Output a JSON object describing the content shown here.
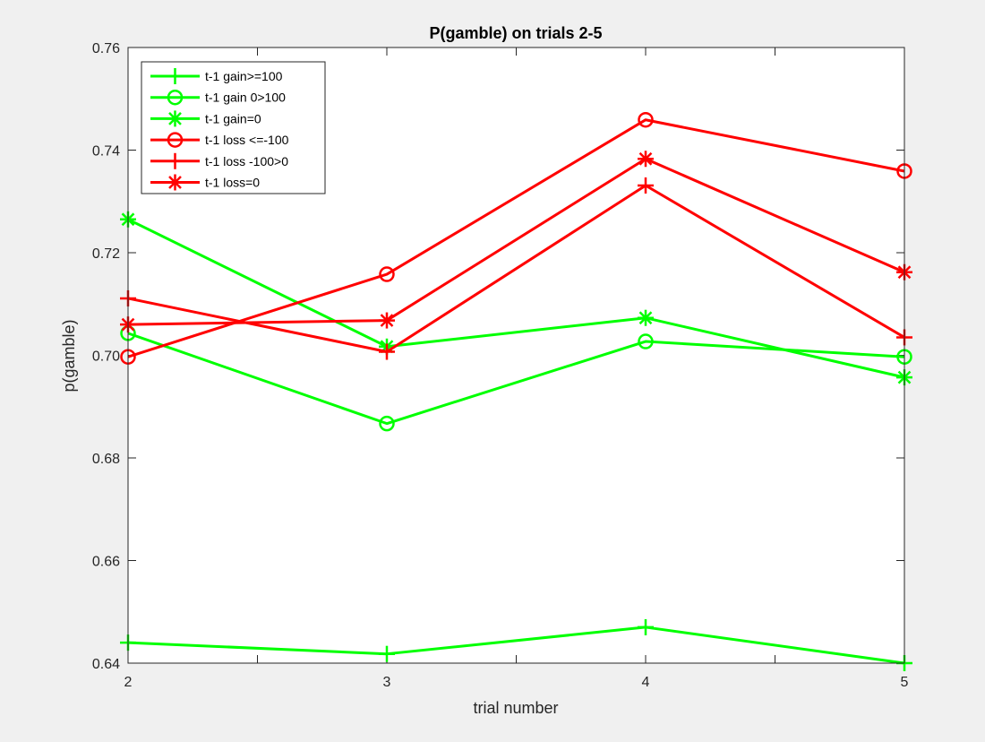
{
  "chart_data": {
    "type": "line",
    "title": "P(gamble) on trials 2-5",
    "xlabel": "trial number",
    "ylabel": "p(gamble)",
    "x": [
      2,
      3,
      4,
      5
    ],
    "xlim": [
      2,
      5
    ],
    "ylim": [
      0.64,
      0.76
    ],
    "xticks": [
      "2",
      "3",
      "4",
      "5"
    ],
    "yticks": [
      "0.64",
      "0.66",
      "0.68",
      "0.70",
      "0.72",
      "0.74",
      "0.76"
    ],
    "grid": false,
    "legend_position": "top-left",
    "series": [
      {
        "name": "t-1 gain>=100",
        "color": "#00ff00",
        "marker": "plus",
        "values": [
          0.644,
          0.6418,
          0.647,
          0.64
        ]
      },
      {
        "name": "t-1 gain 0>100",
        "color": "#00ff00",
        "marker": "circle",
        "values": [
          0.7043,
          0.6867,
          0.7027,
          0.6997
        ]
      },
      {
        "name": "t-1 gain=0",
        "color": "#00ff00",
        "marker": "asterisk",
        "values": [
          0.7265,
          0.7017,
          0.7073,
          0.6957
        ]
      },
      {
        "name": "t-1 loss <=-100",
        "color": "#ff0000",
        "marker": "circle",
        "values": [
          0.6997,
          0.7158,
          0.7459,
          0.7359
        ]
      },
      {
        "name": "t-1 loss -100>0",
        "color": "#ff0000",
        "marker": "plus",
        "values": [
          0.7111,
          0.7007,
          0.7331,
          0.7035
        ]
      },
      {
        "name": "t-1 loss=0",
        "color": "#ff0000",
        "marker": "asterisk",
        "values": [
          0.706,
          0.7068,
          0.7383,
          0.7162
        ]
      }
    ]
  }
}
